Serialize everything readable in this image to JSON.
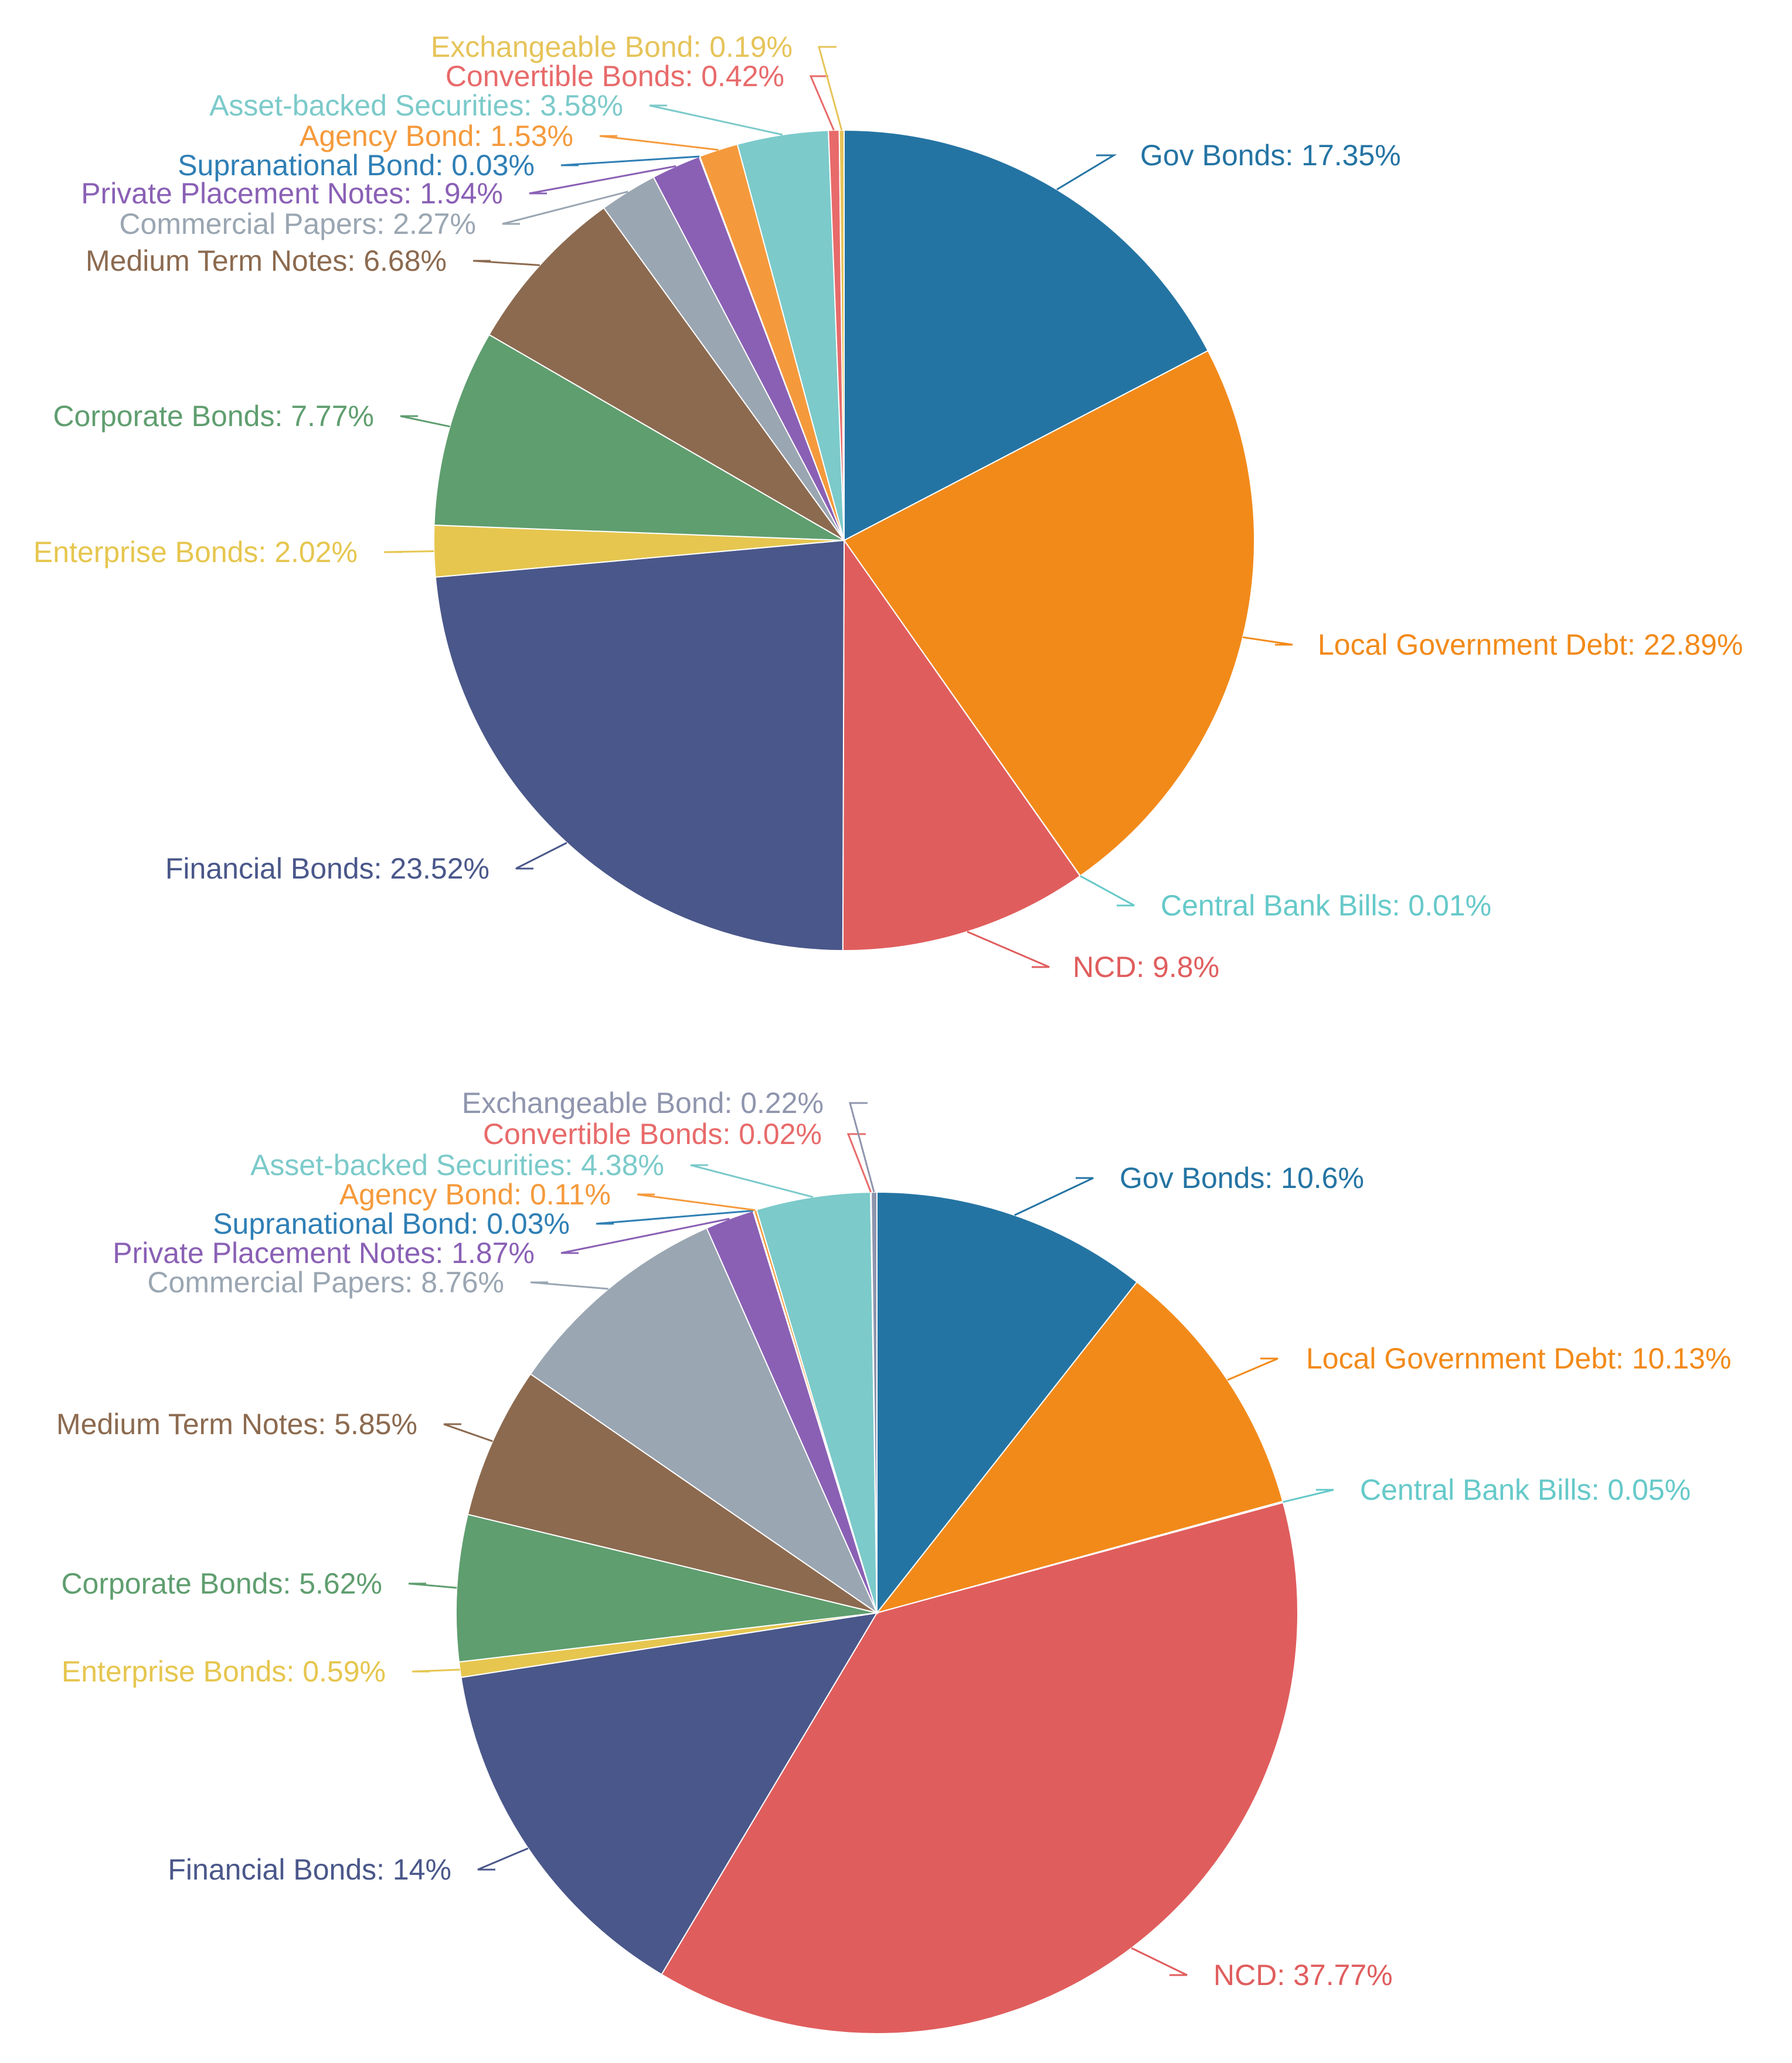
{
  "chart_data": [
    {
      "type": "pie",
      "title": "",
      "slices": [
        {
          "label": "Gov Bonds",
          "value": 17.35,
          "display": "Gov Bonds: 17.35%",
          "color": "#2474a3"
        },
        {
          "label": "Local Government Debt",
          "value": 22.89,
          "display": "Local Government Debt: 22.89%",
          "color": "#f28a1a"
        },
        {
          "label": "Central Bank Bills",
          "value": 0.01,
          "display": "Central Bank Bills: 0.01%",
          "color": "#66c9c9"
        },
        {
          "label": "NCD",
          "value": 9.8,
          "display": "NCD: 9.8%",
          "color": "#e05d5d"
        },
        {
          "label": "Financial Bonds",
          "value": 23.52,
          "display": "Financial Bonds: 23.52%",
          "color": "#4a578a"
        },
        {
          "label": "Enterprise Bonds",
          "value": 2.02,
          "display": "Enterprise Bonds: 2.02%",
          "color": "#e6c64f"
        },
        {
          "label": "Corporate Bonds",
          "value": 7.77,
          "display": "Corporate Bonds: 7.77%",
          "color": "#5f9e6f"
        },
        {
          "label": "Medium Term Notes",
          "value": 6.68,
          "display": "Medium Term Notes: 6.68%",
          "color": "#8c6a4f"
        },
        {
          "label": "Commercial Papers",
          "value": 2.27,
          "display": "Commercial Papers: 2.27%",
          "color": "#9aa6b2"
        },
        {
          "label": "Private Placement Notes",
          "value": 1.94,
          "display": "Private Placement Notes: 1.94%",
          "color": "#8a60b5"
        },
        {
          "label": "Supranational Bond",
          "value": 0.03,
          "display": "Supranational Bond: 0.03%",
          "color": "#2f7fb5"
        },
        {
          "label": "Agency Bond",
          "value": 1.53,
          "display": "Agency Bond: 1.53%",
          "color": "#f59a3c"
        },
        {
          "label": "Asset-backed Securities",
          "value": 3.58,
          "display": "Asset-backed Securities: 3.58%",
          "color": "#7ccaca"
        },
        {
          "label": "Convertible Bonds",
          "value": 0.42,
          "display": "Convertible Bonds: 0.42%",
          "color": "#e86a6a"
        },
        {
          "label": "Exchangeable Bond",
          "value": 0.19,
          "display": "Exchangeable Bond: 0.19%",
          "color": "#e6c45a"
        }
      ]
    },
    {
      "type": "pie",
      "title": "",
      "slices": [
        {
          "label": "Gov Bonds",
          "value": 10.6,
          "display": "Gov Bonds: 10.6%",
          "color": "#2474a3"
        },
        {
          "label": "Local Government Debt",
          "value": 10.13,
          "display": "Local Government Debt: 10.13%",
          "color": "#f28a1a"
        },
        {
          "label": "Central Bank Bills",
          "value": 0.05,
          "display": "Central Bank Bills: 0.05%",
          "color": "#66c9c9"
        },
        {
          "label": "NCD",
          "value": 37.77,
          "display": "NCD: 37.77%",
          "color": "#e05d5d"
        },
        {
          "label": "Financial Bonds",
          "value": 14,
          "display": "Financial Bonds: 14%",
          "color": "#4a578a"
        },
        {
          "label": "Enterprise Bonds",
          "value": 0.59,
          "display": "Enterprise Bonds: 0.59%",
          "color": "#e6c64f"
        },
        {
          "label": "Corporate Bonds",
          "value": 5.62,
          "display": "Corporate Bonds: 5.62%",
          "color": "#5f9e6f"
        },
        {
          "label": "Medium Term Notes",
          "value": 5.85,
          "display": "Medium Term Notes: 5.85%",
          "color": "#8c6a4f"
        },
        {
          "label": "Commercial Papers",
          "value": 8.76,
          "display": "Commercial Papers: 8.76%",
          "color": "#9aa6b2"
        },
        {
          "label": "Private Placement Notes",
          "value": 1.87,
          "display": "Private Placement Notes: 1.87%",
          "color": "#8a60b5"
        },
        {
          "label": "Supranational Bond",
          "value": 0.03,
          "display": "Supranational Bond: 0.03%",
          "color": "#2f7fb5"
        },
        {
          "label": "Agency Bond",
          "value": 0.11,
          "display": "Agency Bond: 0.11%",
          "color": "#f59a3c"
        },
        {
          "label": "Asset-backed Securities",
          "value": 4.38,
          "display": "Asset-backed Securities: 4.38%",
          "color": "#7ccaca"
        },
        {
          "label": "Convertible Bonds",
          "value": 0.02,
          "display": "Convertible Bonds: 0.02%",
          "color": "#e86a6a"
        },
        {
          "label": "Exchangeable Bond",
          "value": 0.22,
          "display": "Exchangeable Bond: 0.22%",
          "color": "#8f95ad"
        }
      ]
    }
  ]
}
